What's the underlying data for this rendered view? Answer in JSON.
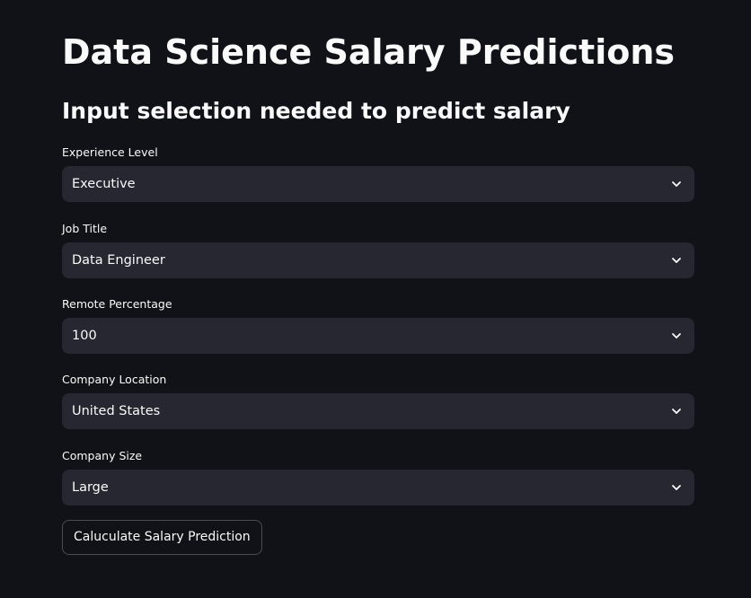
{
  "page": {
    "title": "Data Science Salary Predictions",
    "subtitle": "Input selection needed to predict salary"
  },
  "fields": [
    {
      "label": "Experience Level",
      "value": "Executive",
      "icon": "chevron-down-icon"
    },
    {
      "label": "Job Title",
      "value": "Data Engineer",
      "icon": "chevron-down-icon"
    },
    {
      "label": "Remote Percentage",
      "value": "100",
      "icon": "chevron-down-icon"
    },
    {
      "label": "Company Location",
      "value": "United States",
      "icon": "chevron-down-icon"
    },
    {
      "label": "Company Size",
      "value": "Large",
      "icon": "chevron-down-icon"
    }
  ],
  "actions": {
    "calculate_label": "Caluculate Salary Prediction"
  },
  "colors": {
    "background": "#111217",
    "select_background": "#262730",
    "text": "#fafafa",
    "button_border": "#4a4c55"
  }
}
